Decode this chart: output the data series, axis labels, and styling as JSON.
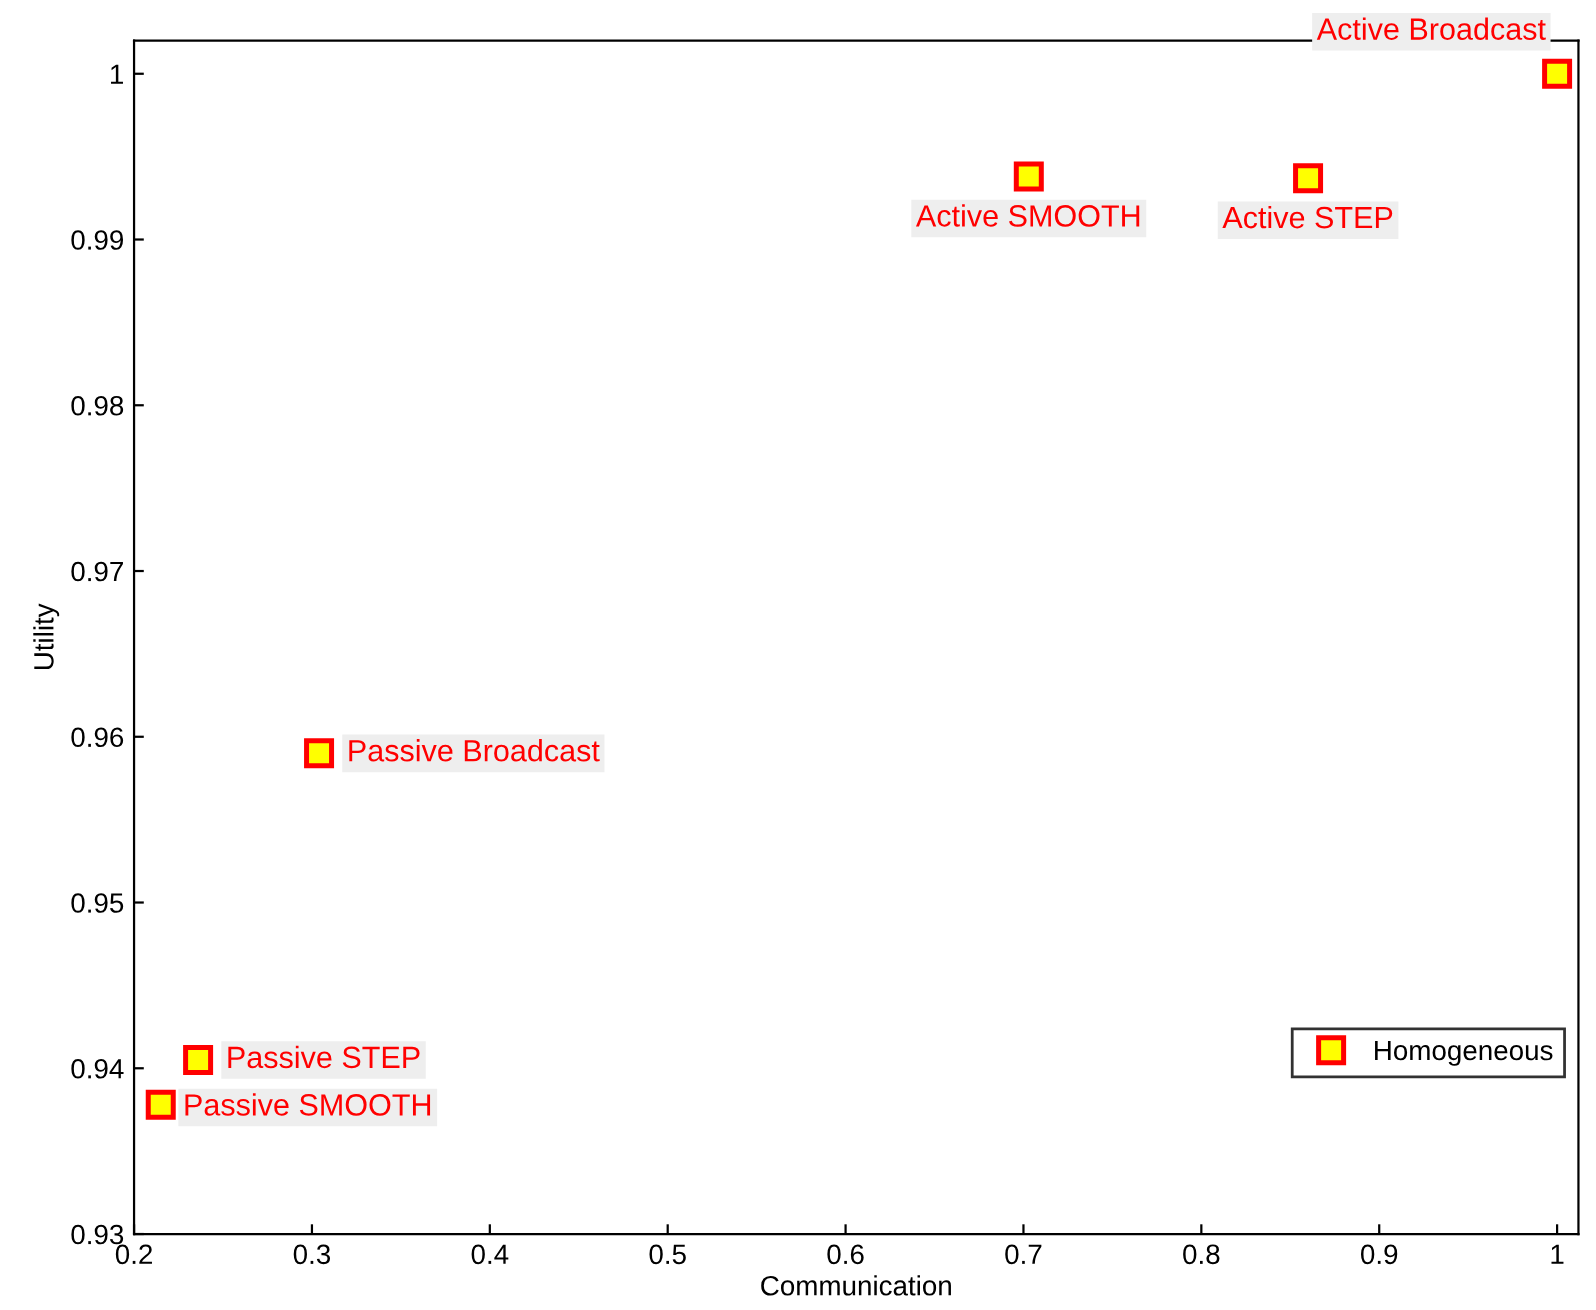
{
  "chart_data": {
    "type": "scatter",
    "xlabel": "Communication",
    "ylabel": "Utility",
    "xlim": [
      0.2,
      1.012
    ],
    "ylim": [
      0.93,
      1.002
    ],
    "xticks": [
      0.2,
      0.3,
      0.4,
      0.5,
      0.6,
      0.7,
      0.8,
      0.9,
      1
    ],
    "yticks": [
      0.93,
      0.94,
      0.95,
      0.96,
      0.97,
      0.98,
      0.99,
      1
    ],
    "series": [
      {
        "name": "Homogeneous",
        "color": "#ffff00",
        "x": [
          1.0,
          0.703,
          0.86,
          0.304,
          0.236,
          0.215
        ],
        "values": [
          1.0,
          0.9938,
          0.9937,
          0.959,
          0.9405,
          0.9378
        ]
      }
    ],
    "annotations": [
      {
        "text": "Active Broadcast",
        "x": 1.0,
        "y": 1.0
      },
      {
        "text": "Active SMOOTH",
        "x": 0.703,
        "y": 0.9938
      },
      {
        "text": "Active STEP",
        "x": 0.86,
        "y": 0.9937
      },
      {
        "text": "Passive Broadcast",
        "x": 0.304,
        "y": 0.959
      },
      {
        "text": "Passive STEP",
        "x": 0.236,
        "y": 0.9405
      },
      {
        "text": "Passive SMOOTH",
        "x": 0.215,
        "y": 0.9378
      }
    ],
    "marker": "square",
    "legend": "bottom right",
    "grid": false
  }
}
